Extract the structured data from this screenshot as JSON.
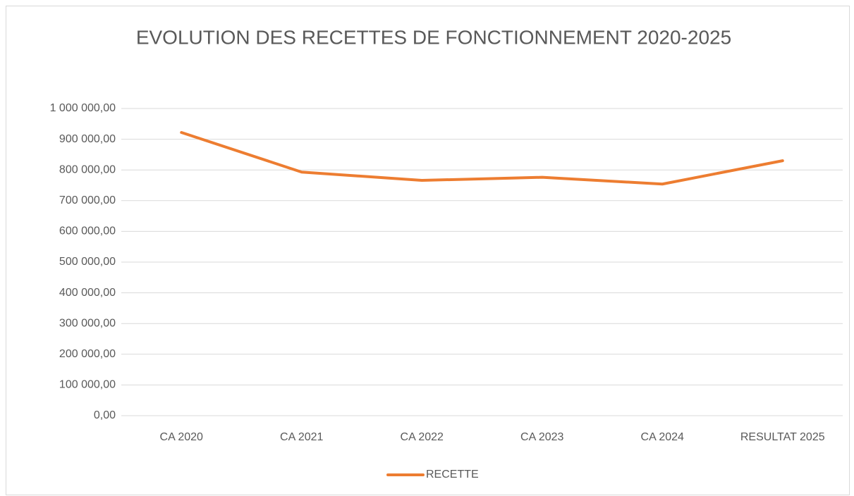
{
  "chart_data": {
    "type": "line",
    "title": "EVOLUTION DES RECETTES DE FONCTIONNEMENT 2020-2025",
    "categories": [
      "CA 2020",
      "CA 2021",
      "CA 2022",
      "CA 2023",
      "CA 2024",
      "RESULTAT 2025"
    ],
    "series": [
      {
        "name": "RECETTE",
        "color": "#ed7d31",
        "values": [
          922000,
          793000,
          766000,
          776000,
          754000,
          830000
        ]
      }
    ],
    "ylim": [
      0,
      1000000
    ],
    "yticks": [
      {
        "value": 0,
        "label": "0,00"
      },
      {
        "value": 100000,
        "label": "100 000,00"
      },
      {
        "value": 200000,
        "label": "200 000,00"
      },
      {
        "value": 300000,
        "label": "300 000,00"
      },
      {
        "value": 400000,
        "label": "400 000,00"
      },
      {
        "value": 500000,
        "label": "500 000,00"
      },
      {
        "value": 600000,
        "label": "600 000,00"
      },
      {
        "value": 700000,
        "label": "700 000,00"
      },
      {
        "value": 800000,
        "label": "800 000,00"
      },
      {
        "value": 900000,
        "label": "900 000,00"
      },
      {
        "value": 1000000,
        "label": "1 000 000,00"
      }
    ],
    "grid": true,
    "legend": "bottom"
  }
}
